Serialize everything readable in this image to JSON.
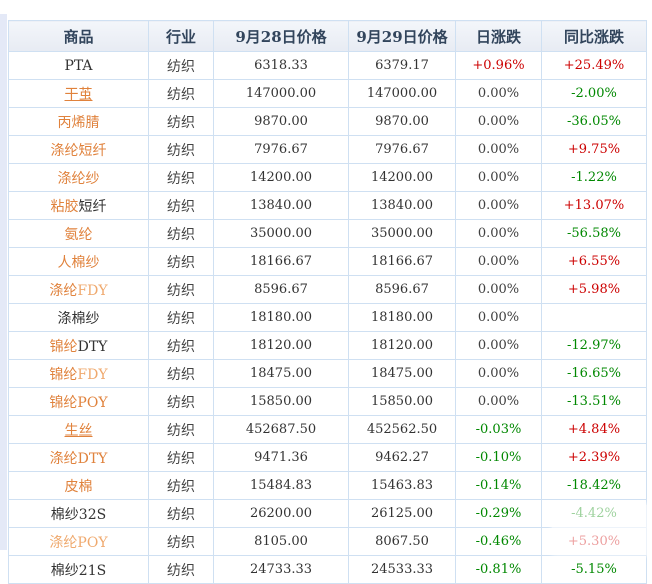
{
  "colors": {
    "accent_link_orange": "#e0823c",
    "link_orange_light": "#efa96e",
    "positive_red": "#cc0000",
    "negative_green": "#008800",
    "header_text": "#32455c",
    "header_bg": "#e9edf5",
    "grid_border": "#cfe0f2",
    "left_strip": "#e4e9f7"
  },
  "table": {
    "headers": [
      "商品",
      "行业",
      "9月28日价格",
      "9月29日价格",
      "日涨跌",
      "同比涨跌"
    ],
    "rows": [
      {
        "name_parts": [
          {
            "t": "PTA",
            "c": "black"
          }
        ],
        "underline": false,
        "link": false,
        "industry": "纺织",
        "price_28": "6318.33",
        "price_29": "6379.17",
        "day_change": "+0.96%",
        "day_class": "red",
        "yoy_change": "+25.49%",
        "yoy_class": "red"
      },
      {
        "name_parts": [
          {
            "t": "干茧",
            "c": "orange"
          }
        ],
        "underline": true,
        "link": true,
        "industry": "纺织",
        "price_28": "147000.00",
        "price_29": "147000.00",
        "day_change": "0.00%",
        "day_class": "dark",
        "yoy_change": "-2.00%",
        "yoy_class": "green"
      },
      {
        "name_parts": [
          {
            "t": "丙烯腈",
            "c": "orange"
          }
        ],
        "underline": false,
        "link": true,
        "industry": "纺织",
        "price_28": "9870.00",
        "price_29": "9870.00",
        "day_change": "0.00%",
        "day_class": "dark",
        "yoy_change": "-36.05%",
        "yoy_class": "green"
      },
      {
        "name_parts": [
          {
            "t": "涤纶短纤",
            "c": "orange"
          }
        ],
        "underline": false,
        "link": true,
        "industry": "纺织",
        "price_28": "7976.67",
        "price_29": "7976.67",
        "day_change": "0.00%",
        "day_class": "dark",
        "yoy_change": "+9.75%",
        "yoy_class": "red"
      },
      {
        "name_parts": [
          {
            "t": "涤纶纱",
            "c": "orange"
          }
        ],
        "underline": false,
        "link": true,
        "industry": "纺织",
        "price_28": "14200.00",
        "price_29": "14200.00",
        "day_change": "0.00%",
        "day_class": "dark",
        "yoy_change": "-1.22%",
        "yoy_class": "green"
      },
      {
        "name_parts": [
          {
            "t": "粘胶",
            "c": "orange"
          },
          {
            "t": "短纤",
            "c": "black"
          }
        ],
        "underline": false,
        "link": true,
        "industry": "纺织",
        "price_28": "13840.00",
        "price_29": "13840.00",
        "day_change": "0.00%",
        "day_class": "dark",
        "yoy_change": "+13.07%",
        "yoy_class": "red"
      },
      {
        "name_parts": [
          {
            "t": "氨纶",
            "c": "orange"
          }
        ],
        "underline": false,
        "link": true,
        "industry": "纺织",
        "price_28": "35000.00",
        "price_29": "35000.00",
        "day_change": "0.00%",
        "day_class": "dark",
        "yoy_change": "-56.58%",
        "yoy_class": "green"
      },
      {
        "name_parts": [
          {
            "t": "人棉纱",
            "c": "orange"
          }
        ],
        "underline": false,
        "link": true,
        "industry": "纺织",
        "price_28": "18166.67",
        "price_29": "18166.67",
        "day_change": "0.00%",
        "day_class": "dark",
        "yoy_change": "+6.55%",
        "yoy_class": "red"
      },
      {
        "name_parts": [
          {
            "t": "涤纶",
            "c": "orange"
          },
          {
            "t": "FDY",
            "c": "orange-light"
          }
        ],
        "underline": false,
        "link": true,
        "industry": "纺织",
        "price_28": "8596.67",
        "price_29": "8596.67",
        "day_change": "0.00%",
        "day_class": "dark",
        "yoy_change": "+5.98%",
        "yoy_class": "red"
      },
      {
        "name_parts": [
          {
            "t": "涤棉纱",
            "c": "black"
          }
        ],
        "underline": false,
        "link": false,
        "industry": "纺织",
        "price_28": "18180.00",
        "price_29": "18180.00",
        "day_change": "0.00%",
        "day_class": "dark",
        "yoy_change": "",
        "yoy_class": "dark"
      },
      {
        "name_parts": [
          {
            "t": "锦纶",
            "c": "orange"
          },
          {
            "t": "DTY",
            "c": "black"
          }
        ],
        "underline": false,
        "link": true,
        "industry": "纺织",
        "price_28": "18120.00",
        "price_29": "18120.00",
        "day_change": "0.00%",
        "day_class": "dark",
        "yoy_change": "-12.97%",
        "yoy_class": "green"
      },
      {
        "name_parts": [
          {
            "t": "锦纶",
            "c": "orange"
          },
          {
            "t": "FDY",
            "c": "orange-light"
          }
        ],
        "underline": false,
        "link": true,
        "industry": "纺织",
        "price_28": "18475.00",
        "price_29": "18475.00",
        "day_change": "0.00%",
        "day_class": "dark",
        "yoy_change": "-16.65%",
        "yoy_class": "green"
      },
      {
        "name_parts": [
          {
            "t": "锦纶POY",
            "c": "orange"
          }
        ],
        "underline": false,
        "link": true,
        "industry": "纺织",
        "price_28": "15850.00",
        "price_29": "15850.00",
        "day_change": "0.00%",
        "day_class": "dark",
        "yoy_change": "-13.51%",
        "yoy_class": "green"
      },
      {
        "name_parts": [
          {
            "t": "生丝",
            "c": "orange"
          }
        ],
        "underline": true,
        "link": true,
        "industry": "纺织",
        "price_28": "452687.50",
        "price_29": "452562.50",
        "day_change": "-0.03%",
        "day_class": "green",
        "yoy_change": "+4.84%",
        "yoy_class": "red"
      },
      {
        "name_parts": [
          {
            "t": "涤纶DTY",
            "c": "orange"
          }
        ],
        "underline": false,
        "link": true,
        "industry": "纺织",
        "price_28": "9471.36",
        "price_29": "9462.27",
        "day_change": "-0.10%",
        "day_class": "green",
        "yoy_change": "+2.39%",
        "yoy_class": "red"
      },
      {
        "name_parts": [
          {
            "t": "皮棉",
            "c": "orange"
          }
        ],
        "underline": false,
        "link": true,
        "industry": "纺织",
        "price_28": "15484.83",
        "price_29": "15463.83",
        "day_change": "-0.14%",
        "day_class": "green",
        "yoy_change": "-18.42%",
        "yoy_class": "green"
      },
      {
        "name_parts": [
          {
            "t": "棉纱32S",
            "c": "black"
          }
        ],
        "underline": false,
        "link": false,
        "industry": "纺织",
        "price_28": "26200.00",
        "price_29": "26125.00",
        "day_change": "-0.29%",
        "day_class": "green",
        "yoy_change": "-4.42%",
        "yoy_class": "green"
      },
      {
        "name_parts": [
          {
            "t": "涤纶POY",
            "c": "orange-light"
          }
        ],
        "underline": false,
        "link": true,
        "industry": "纺织",
        "price_28": "8105.00",
        "price_29": "8067.50",
        "day_change": "-0.46%",
        "day_class": "green",
        "yoy_change": "+5.30%",
        "yoy_class": "red"
      },
      {
        "name_parts": [
          {
            "t": "棉纱21S",
            "c": "black"
          }
        ],
        "underline": false,
        "link": false,
        "industry": "纺织",
        "price_28": "24733.33",
        "price_29": "24533.33",
        "day_change": "-0.81%",
        "day_class": "green",
        "yoy_change": "-5.15%",
        "yoy_class": "green"
      }
    ]
  }
}
